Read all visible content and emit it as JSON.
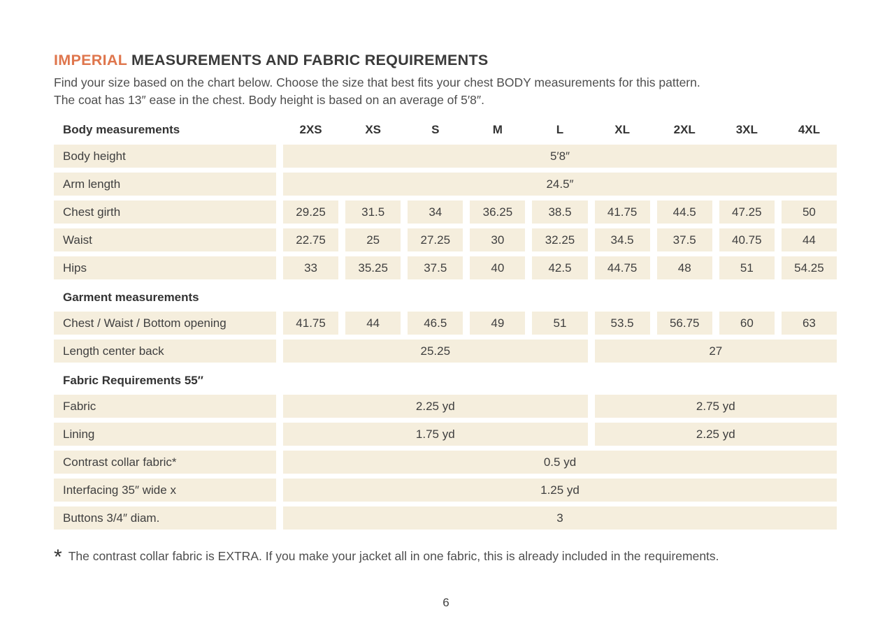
{
  "colors": {
    "accent": "#df764d",
    "cell_background": "#f5eedd"
  },
  "page": {
    "title_accent": "IMPERIAL",
    "title_rest": "MEASUREMENTS AND FABRIC REQUIREMENTS",
    "intro_line1": "Find your size based on the chart below. Choose the size that best fits your chest BODY measurements for this pattern.",
    "intro_line2": "The coat has 13″ ease in the chest. Body height is based on an average of 5′8″.",
    "footnote_marker": "*",
    "footnote_text": "The contrast collar fabric is EXTRA. If you make your jacket all in one fabric, this is already included in the requirements.",
    "page_number": "6"
  },
  "table": {
    "rows": [
      {
        "kind": "header",
        "label": "Body measurements",
        "cells": [
          "2XS",
          "XS",
          "S",
          "M",
          "L",
          "XL",
          "2XL",
          "3XL",
          "4XL"
        ]
      },
      {
        "kind": "span",
        "label": "Body height",
        "value": "5′8″"
      },
      {
        "kind": "span",
        "label": "Arm length",
        "value": "24.5″"
      },
      {
        "kind": "values",
        "label": "Chest girth",
        "cells": [
          "29.25",
          "31.5",
          "34",
          "36.25",
          "38.5",
          "41.75",
          "44.5",
          "47.25",
          "50"
        ]
      },
      {
        "kind": "values",
        "label": "Waist",
        "cells": [
          "22.75",
          "25",
          "27.25",
          "30",
          "32.25",
          "34.5",
          "37.5",
          "40.75",
          "44"
        ]
      },
      {
        "kind": "values",
        "label": "Hips",
        "cells": [
          "33",
          "35.25",
          "37.5",
          "40",
          "42.5",
          "44.75",
          "48",
          "51",
          "54.25"
        ]
      },
      {
        "kind": "section",
        "label": "Garment measurements"
      },
      {
        "kind": "values",
        "label": "Chest / Waist / Bottom opening",
        "cells": [
          "41.75",
          "44",
          "46.5",
          "49",
          "51",
          "53.5",
          "56.75",
          "60",
          "63"
        ]
      },
      {
        "kind": "split",
        "label": "Length center back",
        "left": "25.25",
        "right": "27"
      },
      {
        "kind": "section",
        "label": "Fabric Requirements 55″"
      },
      {
        "kind": "split",
        "label": "Fabric",
        "left": "2.25 yd",
        "right": "2.75 yd"
      },
      {
        "kind": "split",
        "label": "Lining",
        "left": "1.75 yd",
        "right": "2.25 yd"
      },
      {
        "kind": "span",
        "label": "Contrast collar fabric*",
        "value": "0.5 yd"
      },
      {
        "kind": "span",
        "label": "Interfacing  35″ wide x",
        "value": "1.25 yd"
      },
      {
        "kind": "span",
        "label": "Buttons 3/4″ diam.",
        "value": "3"
      }
    ]
  }
}
